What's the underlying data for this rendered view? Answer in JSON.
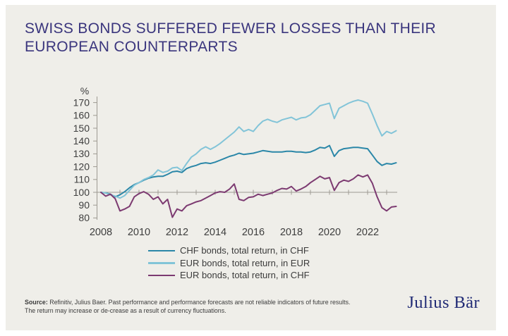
{
  "page": {
    "background": "#ffffff",
    "card_background": "#efeee9"
  },
  "title": {
    "lines": [
      "SWISS BONDS SUFFERED FEWER LOSSES THAN THEIR",
      "EUROPEAN COUNTERPARTS"
    ],
    "color": "#3a357d"
  },
  "footer": {
    "source_prefix": "Source:",
    "source_text": " Refinitiv, Julius Baer. Past performance and performance forecasts are not reliable indicators of future results.",
    "line2": "The return may increase or de-crease as a result of currency fluctuations."
  },
  "logo": {
    "text": "Julius Bär",
    "color": "#222c76"
  },
  "chart_data": {
    "type": "line",
    "unit_label": "%",
    "x_start": 2008,
    "x_step": 0.25,
    "x_label_years": [
      2008,
      2010,
      2012,
      2014,
      2016,
      2018,
      2020,
      2022
    ],
    "x_tick_years": [
      2009,
      2010,
      2011,
      2012,
      2013,
      2014,
      2015,
      2016,
      2017,
      2018,
      2019,
      2020,
      2021,
      2022,
      2023
    ],
    "y_ticks": [
      80,
      90,
      100,
      110,
      120,
      130,
      140,
      150,
      160,
      170
    ],
    "ylim": [
      80,
      170
    ],
    "baseline_value": 100,
    "grid": "baseline-only",
    "legend_position": "bottom",
    "axis_color": "#9d9a92",
    "text_color": "#3e3e3e",
    "series": [
      {
        "name": "CHF bonds, total return, in CHF",
        "color": "#2b87a8",
        "values": [
          100,
          99.5,
          98.5,
          96.5,
          98,
          100.5,
          103.5,
          106,
          107.5,
          109.5,
          111,
          112,
          112.5,
          112.5,
          114,
          116,
          116.5,
          115.5,
          118.5,
          120,
          121,
          122.5,
          123,
          122.5,
          123.5,
          125,
          126.5,
          128,
          129,
          130.5,
          129.5,
          130,
          130.5,
          131.5,
          132.5,
          132,
          131.5,
          131.5,
          131.5,
          132,
          132,
          131.5,
          131.5,
          131,
          131.5,
          133,
          135,
          134.5,
          136.5,
          128,
          132.5,
          134,
          134.5,
          135,
          135,
          134.5,
          134,
          129,
          124,
          121,
          122.5,
          122,
          123
        ]
      },
      {
        "name": "EUR bonds, total return, in EUR",
        "color": "#82c4d8",
        "values": [
          100,
          99.5,
          98,
          97,
          95.5,
          97.5,
          101.5,
          105.5,
          107.5,
          110,
          111.5,
          113.5,
          117.5,
          115.5,
          116.5,
          119,
          119.5,
          117,
          122.5,
          127.5,
          130,
          133.5,
          135.5,
          133.5,
          135.5,
          138,
          141,
          144,
          147,
          151,
          147.5,
          149,
          147.5,
          152,
          155.5,
          157,
          155.5,
          154.5,
          156.5,
          157.5,
          158.5,
          156.5,
          158,
          158.5,
          160.5,
          164,
          167.5,
          168.5,
          169.5,
          157.5,
          165.5,
          167.5,
          169.5,
          171,
          172,
          171,
          169.5,
          161,
          152,
          144,
          147.5,
          146,
          148
        ]
      },
      {
        "name": "EUR bonds, total return, in CHF",
        "color": "#7c3a71",
        "values": [
          100,
          97,
          98.5,
          95,
          85.5,
          87,
          89,
          96.5,
          99,
          100.5,
          98.5,
          94.5,
          96.5,
          91,
          94.5,
          80.5,
          87,
          85.5,
          89.5,
          91,
          92.5,
          93.5,
          95.5,
          97.5,
          99.5,
          100.5,
          100,
          102.5,
          106.5,
          94.5,
          93.5,
          96,
          96.5,
          98.5,
          97.5,
          98.5,
          99.5,
          101.5,
          103,
          102.5,
          104.5,
          101,
          102.5,
          104.5,
          107.5,
          110,
          112.5,
          110.5,
          111.5,
          101.5,
          107.5,
          109.5,
          108.5,
          110.5,
          113.5,
          112,
          113.5,
          107,
          96.5,
          88,
          85.5,
          88.5,
          89
        ]
      }
    ]
  }
}
